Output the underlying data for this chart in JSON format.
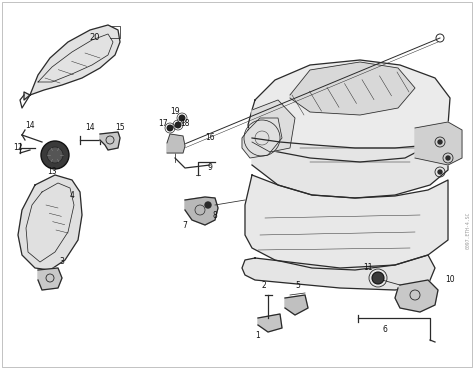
{
  "background_color": "#ffffff",
  "line_color": "#2a2a2a",
  "label_color": "#111111",
  "fig_width": 4.74,
  "fig_height": 3.69,
  "dpi": 100,
  "watermark": "0097.ETH-4.SC"
}
